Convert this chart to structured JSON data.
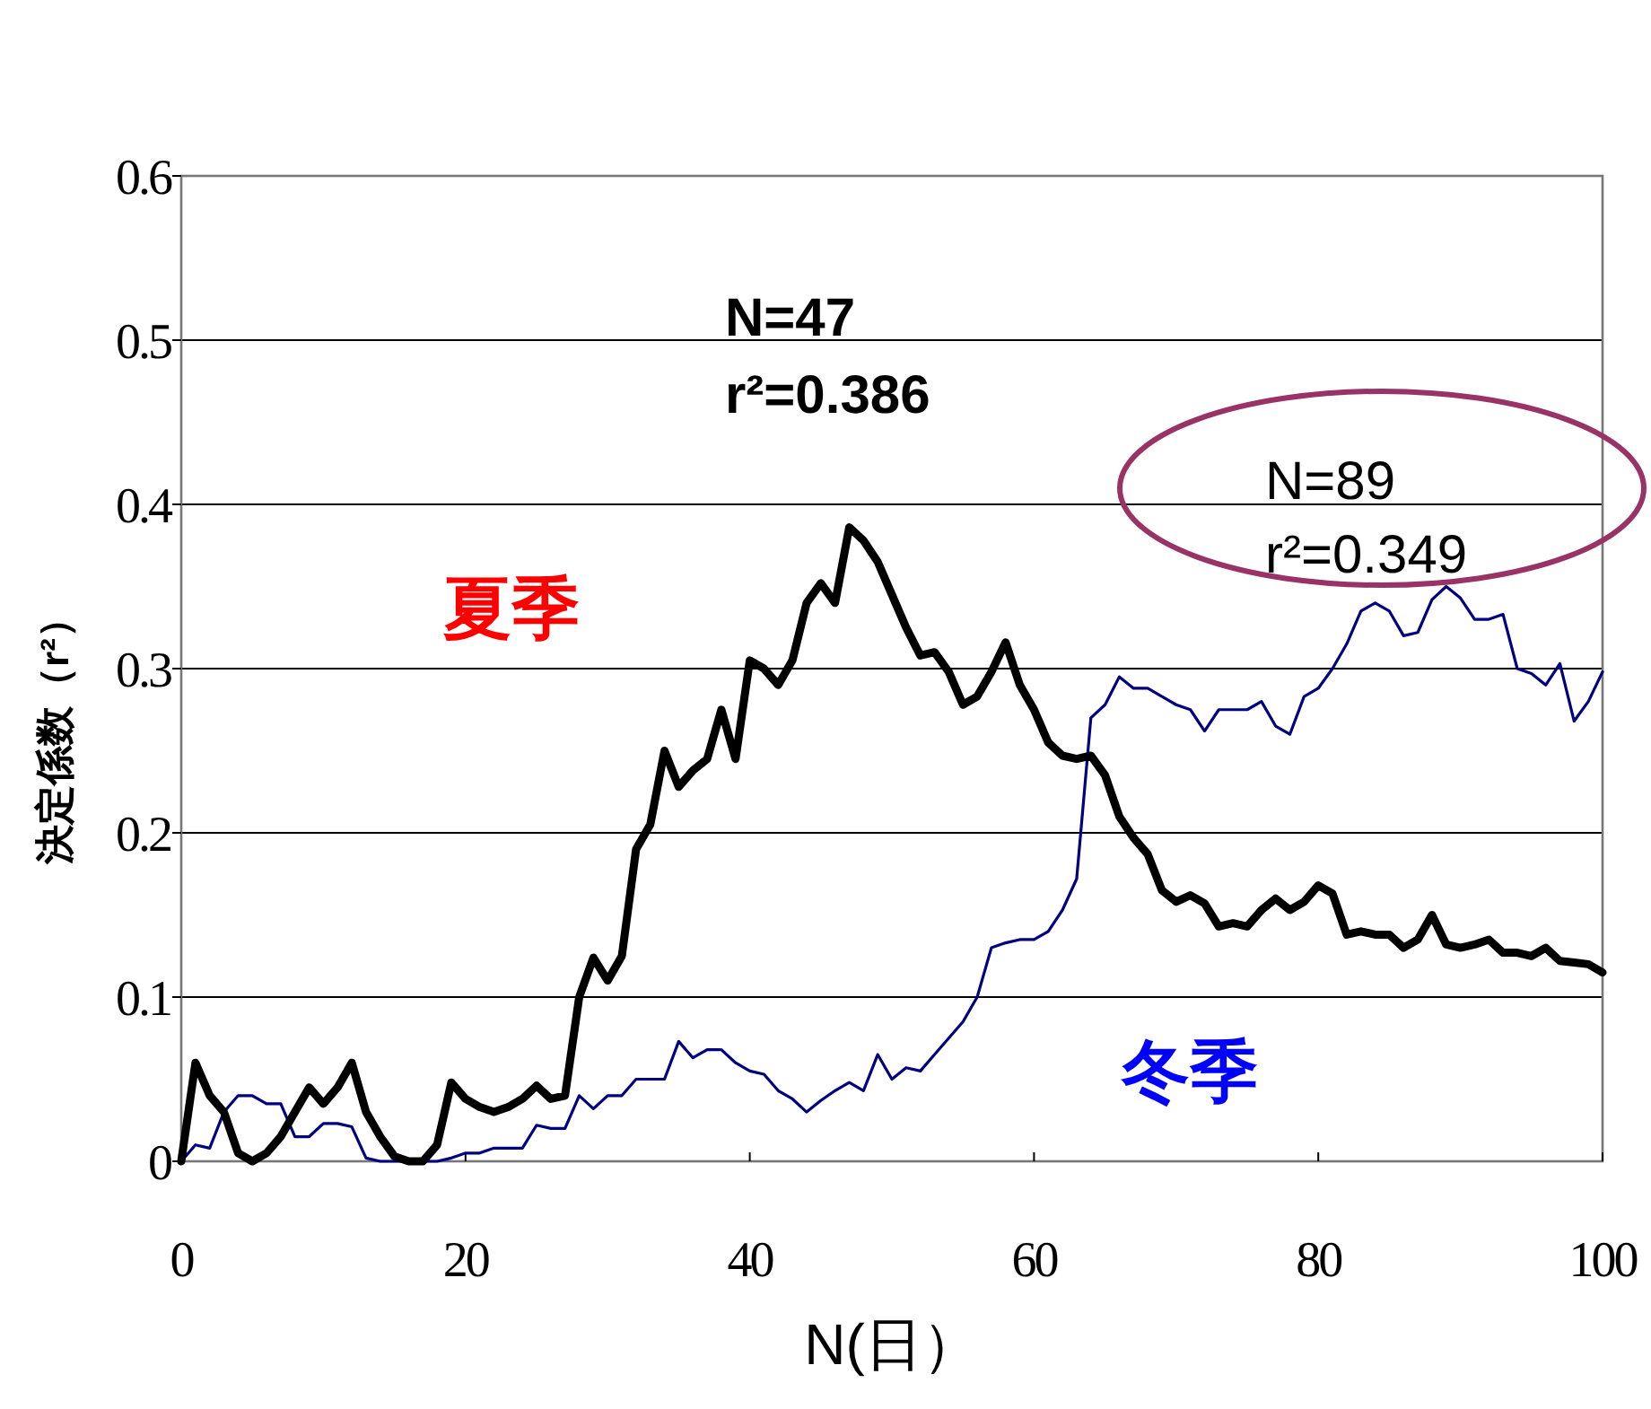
{
  "chart_data": {
    "type": "line",
    "xlabel": "N(日）",
    "ylabel": "決定係数（r²）",
    "x": [
      0,
      1,
      2,
      3,
      4,
      5,
      6,
      7,
      8,
      9,
      10,
      11,
      12,
      13,
      14,
      15,
      16,
      17,
      18,
      19,
      20,
      21,
      22,
      23,
      24,
      25,
      26,
      27,
      28,
      29,
      30,
      31,
      32,
      33,
      34,
      35,
      36,
      37,
      38,
      39,
      40,
      41,
      42,
      43,
      44,
      45,
      46,
      47,
      48,
      49,
      50,
      51,
      52,
      53,
      54,
      55,
      56,
      57,
      58,
      59,
      60,
      61,
      62,
      63,
      64,
      65,
      66,
      67,
      68,
      69,
      70,
      71,
      72,
      73,
      74,
      75,
      76,
      77,
      78,
      79,
      80,
      81,
      82,
      83,
      84,
      85,
      86,
      87,
      88,
      89,
      90,
      91,
      92,
      93,
      94,
      95,
      96,
      97,
      98,
      99,
      100
    ],
    "series": [
      {
        "color": "#000080",
        "values": [
          0,
          0.01,
          0.008,
          0.03,
          0.04,
          0.04,
          0.035,
          0.035,
          0.015,
          0.015,
          0.023,
          0.023,
          0.021,
          0.002,
          0,
          0,
          0,
          0,
          0,
          0.002,
          0.005,
          0.005,
          0.008,
          0.008,
          0.008,
          0.022,
          0.02,
          0.02,
          0.04,
          0.032,
          0.04,
          0.04,
          0.05,
          0.05,
          0.05,
          0.073,
          0.063,
          0.068,
          0.068,
          0.06,
          0.055,
          0.053,
          0.043,
          0.038,
          0.03,
          0.037,
          0.043,
          0.048,
          0.043,
          0.065,
          0.05,
          0.057,
          0.055,
          0.065,
          0.075,
          0.085,
          0.1,
          0.13,
          0.133,
          0.135,
          0.135,
          0.14,
          0.153,
          0.172,
          0.27,
          0.278,
          0.295,
          0.288,
          0.288,
          0.283,
          0.278,
          0.275,
          0.262,
          0.275,
          0.275,
          0.275,
          0.28,
          0.265,
          0.26,
          0.283,
          0.288,
          0.3,
          0.315,
          0.335,
          0.34,
          0.335,
          0.32,
          0.322,
          0.342,
          0.35,
          0.343,
          0.33,
          0.33,
          0.333,
          0.3,
          0.297,
          0.29,
          0.303,
          0.268,
          0.28,
          0.298
        ]
      },
      {
        "color": "#000000",
        "values": [
          0,
          0.06,
          0.04,
          0.03,
          0.005,
          0,
          0.005,
          0.015,
          0.03,
          0.045,
          0.035,
          0.045,
          0.06,
          0.03,
          0.015,
          0.003,
          0,
          0,
          0.01,
          0.048,
          0.038,
          0.033,
          0.03,
          0.033,
          0.038,
          0.046,
          0.038,
          0.04,
          0.1,
          0.124,
          0.11,
          0.125,
          0.19,
          0.205,
          0.25,
          0.228,
          0.238,
          0.245,
          0.275,
          0.245,
          0.305,
          0.3,
          0.29,
          0.305,
          0.34,
          0.352,
          0.34,
          0.386,
          0.378,
          0.365,
          0.345,
          0.325,
          0.308,
          0.31,
          0.298,
          0.278,
          0.283,
          0.298,
          0.316,
          0.29,
          0.275,
          0.255,
          0.247,
          0.245,
          0.247,
          0.235,
          0.21,
          0.197,
          0.187,
          0.165,
          0.158,
          0.162,
          0.157,
          0.143,
          0.145,
          0.143,
          0.153,
          0.16,
          0.153,
          0.158,
          0.168,
          0.163,
          0.138,
          0.14,
          0.138,
          0.138,
          0.13,
          0.135,
          0.15,
          0.132,
          0.13,
          0.132,
          0.135,
          0.127,
          0.127,
          0.125,
          0.13,
          0.122,
          0.121,
          0.12,
          0.115
        ]
      }
    ],
    "xlim": [
      0,
      100
    ],
    "xticks": [
      0,
      20,
      40,
      60,
      80,
      100
    ],
    "ylim": [
      0,
      0.6
    ],
    "yticks": [
      0,
      0.1,
      0.2,
      0.3,
      0.4,
      0.5,
      0.6
    ],
    "grid": "y",
    "annotations": [
      "夏季",
      "冬季",
      "N=47\nr²=0.386",
      "N=89\nr²=0.349"
    ]
  }
}
